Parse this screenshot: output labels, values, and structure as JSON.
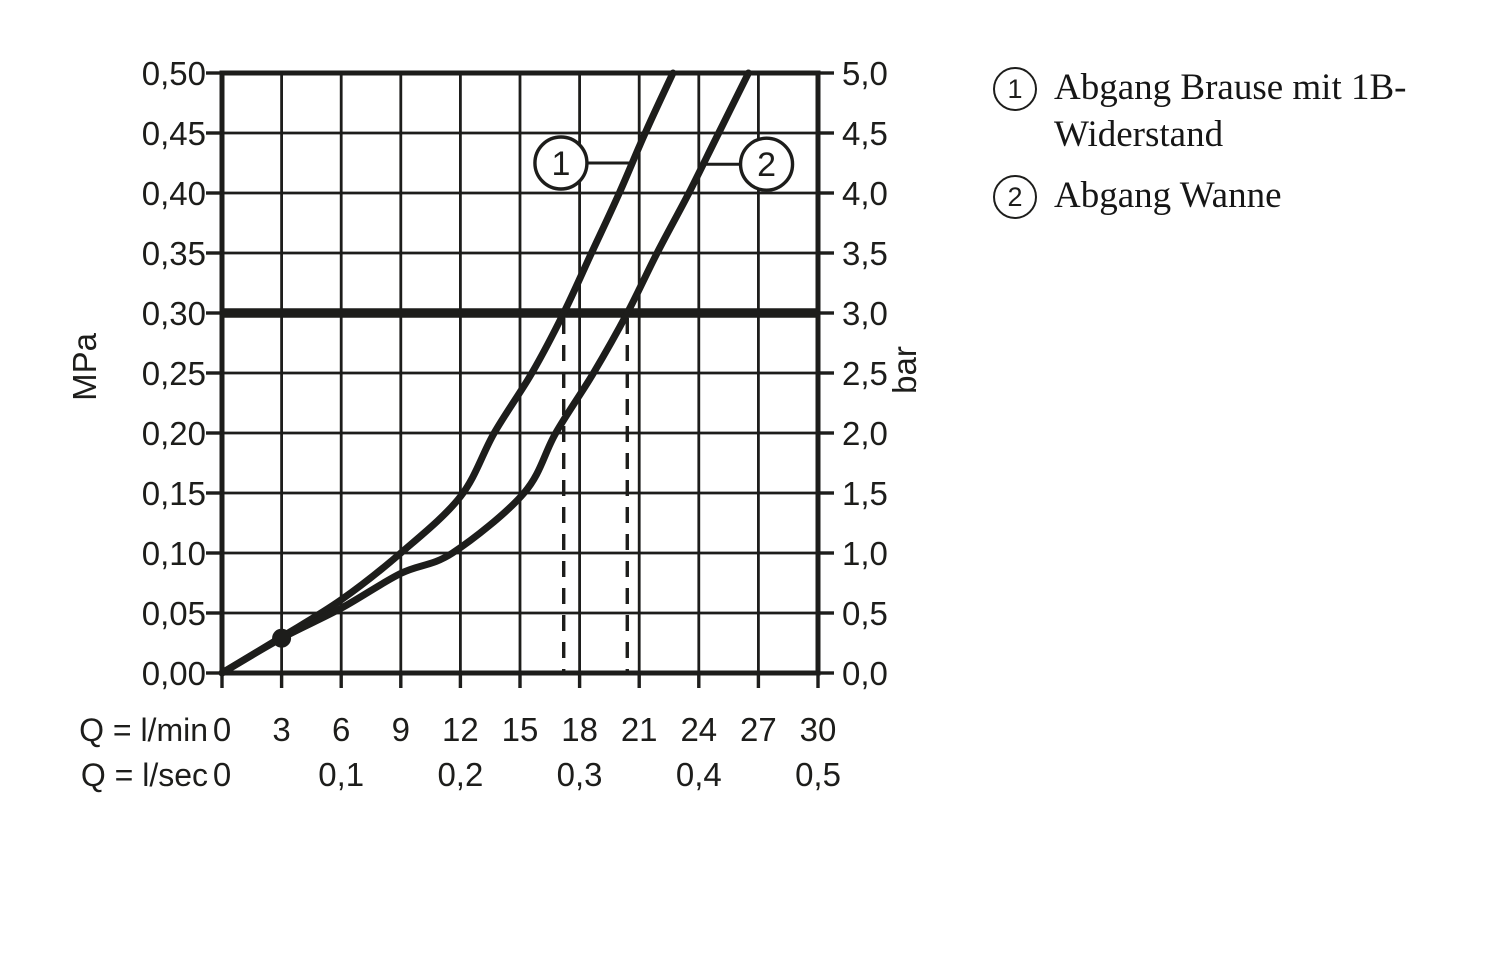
{
  "colors": {
    "ink": "#1d1d1b",
    "background": "#ffffff"
  },
  "legend": {
    "items": [
      {
        "symbol": "1",
        "line1": "Abgang Brause mit 1B-",
        "line2": "Widerstand"
      },
      {
        "symbol": "2",
        "line1": "Abgang Wanne",
        "line2": ""
      }
    ]
  },
  "chart_data": {
    "type": "line",
    "title": "",
    "grid": true,
    "x_axis": {
      "label_row1": "Q = l/min",
      "label_row2": "Q = l/sec",
      "range_l_min": [
        0,
        30
      ],
      "ticks_l_min": [
        "0",
        "3",
        "6",
        "9",
        "12",
        "15",
        "18",
        "21",
        "24",
        "27",
        "30"
      ],
      "ticks_l_sec": [
        {
          "label": "0",
          "grid_index": 0
        },
        {
          "label": "0,1",
          "grid_index": 2
        },
        {
          "label": "0,2",
          "grid_index": 4
        },
        {
          "label": "0,3",
          "grid_index": 6
        },
        {
          "label": "0,4",
          "grid_index": 8
        },
        {
          "label": "0,5",
          "grid_index": 10
        }
      ]
    },
    "y_axis_left": {
      "unit": "MPa",
      "range_mpa": [
        0,
        0.5
      ],
      "ticks": [
        "0,00",
        "0,05",
        "0,10",
        "0,15",
        "0,20",
        "0,25",
        "0,30",
        "0,35",
        "0,40",
        "0,45",
        "0,50"
      ]
    },
    "y_axis_right": {
      "unit": "bar",
      "range_bar": [
        0,
        5
      ],
      "ticks": [
        "0,0",
        "0,5",
        "1,0",
        "1,5",
        "2,0",
        "2,5",
        "3,0",
        "3,5",
        "4,0",
        "4,5",
        "5,0"
      ]
    },
    "series": [
      {
        "id": "1",
        "name": "Abgang Brause mit 1B-Widerstand",
        "points_q_lmin_vs_mpa": [
          [
            0,
            0
          ],
          [
            3,
            0.03
          ],
          [
            6,
            0.061
          ],
          [
            9,
            0.1
          ],
          [
            12,
            0.147
          ],
          [
            13.7,
            0.2
          ],
          [
            15.6,
            0.25
          ],
          [
            17.2,
            0.3
          ],
          [
            18.6,
            0.35
          ],
          [
            20.0,
            0.4
          ],
          [
            21.3,
            0.45
          ],
          [
            22.7,
            0.5
          ]
        ],
        "callout": {
          "circle_q": 17.06,
          "circle_mpa": 0.425,
          "touch_q": 20.72
        }
      },
      {
        "id": "2",
        "name": "Abgang Wanne",
        "points_q_lmin_vs_mpa": [
          [
            0,
            0
          ],
          [
            3,
            0.029
          ],
          [
            6,
            0.054
          ],
          [
            9,
            0.083
          ],
          [
            11.6,
            0.1
          ],
          [
            15.2,
            0.15
          ],
          [
            16.8,
            0.2
          ],
          [
            18.7,
            0.25
          ],
          [
            20.4,
            0.3
          ],
          [
            21.9,
            0.35
          ],
          [
            23.5,
            0.4
          ],
          [
            25.0,
            0.45
          ],
          [
            26.5,
            0.5
          ]
        ],
        "callout": {
          "circle_q": 27.41,
          "circle_mpa": 0.424,
          "touch_q": 24.16
        }
      }
    ],
    "reference_line_mpa": 0.3,
    "dashed_drop_lines_q_lmin": [
      17.2,
      20.4
    ],
    "dot_point_q_mpa": [
      3,
      0.029
    ],
    "legend_position": "right"
  }
}
